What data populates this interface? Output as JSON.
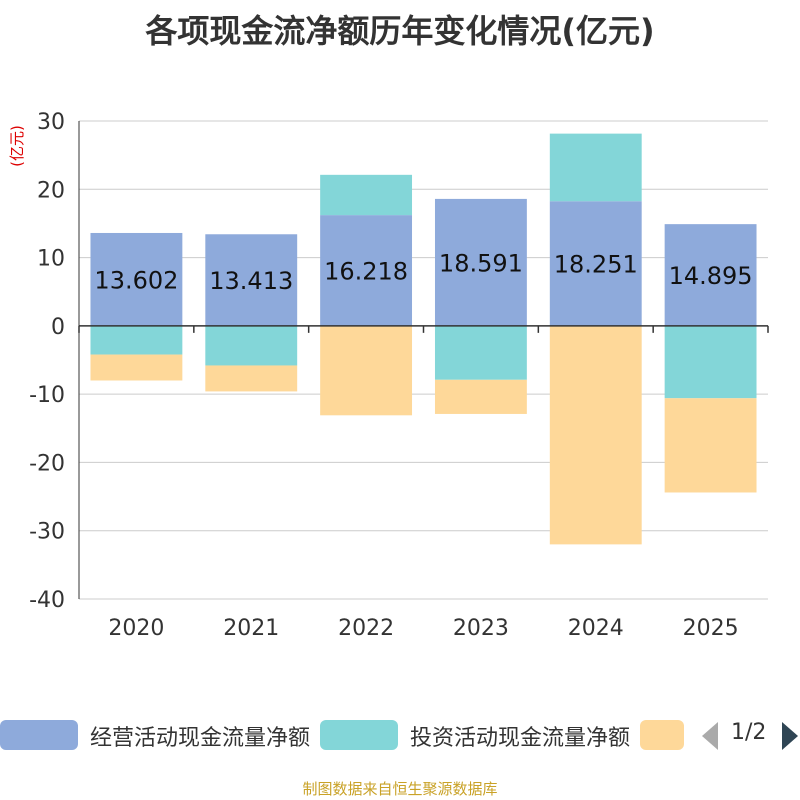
{
  "chart_data": {
    "type": "bar",
    "stacked": true,
    "title": "各项现金流净额历年变化情况(亿元)",
    "ylabel": "(亿元)",
    "ylim": [
      -40,
      30
    ],
    "yticks": [
      30,
      20,
      10,
      0,
      -10,
      -20,
      -30,
      -40
    ],
    "ytick_labels": [
      "30",
      "20",
      "10",
      "0",
      "-10",
      "-20",
      "-30",
      "-40"
    ],
    "categories": [
      "2020",
      "2021",
      "2022",
      "2023",
      "2024",
      "2025"
    ],
    "series": [
      {
        "name": "经营活动现金流量净额",
        "color": "#8eaadb",
        "values": [
          13.602,
          13.413,
          16.218,
          18.591,
          18.251,
          14.895
        ]
      },
      {
        "name": "投资活动现金流量净额",
        "color": "#83d6d8",
        "values": [
          -4.2,
          -5.8,
          5.9,
          -7.9,
          9.9,
          -10.6
        ]
      },
      {
        "name": "",
        "color": "#fed899",
        "values": [
          -3.8,
          -3.8,
          -13.1,
          -5.0,
          -32.0,
          -13.8
        ]
      }
    ],
    "data_labels": [
      "13.602",
      "13.413",
      "16.218",
      "18.591",
      "18.251",
      "14.895"
    ],
    "legend_position": "bottom",
    "grid": true
  },
  "legend": {
    "item1_label": "经营活动现金流量净额",
    "item2_label": "投资活动现金流量净额",
    "page": "1/2"
  },
  "source": "制图数据来自恒生聚源数据库"
}
